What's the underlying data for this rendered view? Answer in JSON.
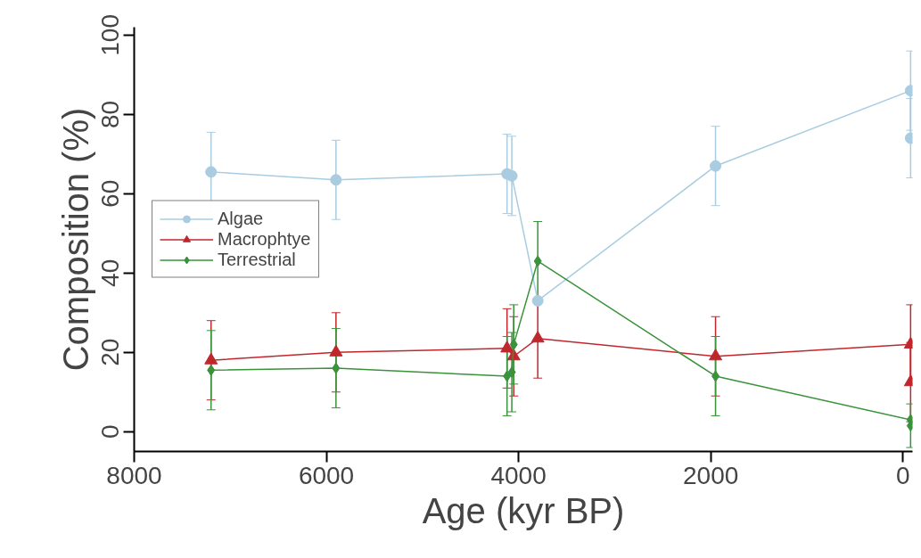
{
  "chart_data": {
    "type": "line",
    "xlabel": "Age (kyr BP)",
    "ylabel": "Composition (%)",
    "xlim": [
      8000,
      -100
    ],
    "ylim": [
      -5,
      102
    ],
    "xticks": [
      8000,
      6000,
      4000,
      2000,
      0
    ],
    "yticks": [
      0,
      20,
      40,
      60,
      80,
      100
    ],
    "grid": false,
    "legend": "left",
    "line_style": "solid",
    "series": [
      {
        "name": "Algae",
        "color": "#a9cce0",
        "marker": "circle",
        "x": [
          7200,
          5900,
          4120,
          4070,
          3800,
          1950,
          -80,
          -80
        ],
        "values": [
          65.5,
          63.5,
          65,
          64.5,
          33,
          67,
          86,
          74
        ],
        "errors": [
          10,
          10,
          10,
          10,
          null,
          10,
          10,
          10
        ]
      },
      {
        "name": "Macrophtye",
        "color": "#c0272d",
        "marker": "triangle",
        "x": [
          7200,
          5900,
          4120,
          4050,
          3800,
          1950,
          -80,
          -80
        ],
        "values": [
          18,
          20,
          21,
          19,
          23.5,
          19,
          22,
          12.5
        ],
        "errors": [
          10,
          10,
          10,
          10,
          10,
          10,
          10,
          10
        ]
      },
      {
        "name": "Terrestrial",
        "color": "#3a923a",
        "marker": "diamond",
        "x": [
          7200,
          5900,
          4120,
          4070,
          4050,
          3800,
          1950,
          -80,
          -80
        ],
        "values": [
          15.5,
          16,
          14,
          15,
          22,
          43,
          14,
          3,
          1.5
        ],
        "errors": [
          10,
          10,
          10,
          10,
          10,
          10,
          10,
          null,
          5.5
        ]
      }
    ]
  }
}
